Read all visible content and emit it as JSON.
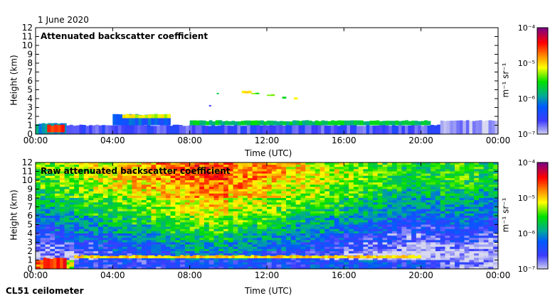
{
  "date": "1 June 2020",
  "instrument": "CL51 ceilometer",
  "colorbar": {
    "unit_label": "m⁻¹ sr⁻¹",
    "ticks": [
      "10⁻⁴",
      "10⁻⁵",
      "10⁻⁶",
      "10⁻⁷"
    ],
    "range_log10": [
      -7,
      -4
    ]
  },
  "chart_data": [
    {
      "type": "heatmap",
      "title": "Attenuated backscatter coefficient",
      "xlabel": "Time (UTC)",
      "ylabel": "Height (km)",
      "xlim": [
        0,
        24
      ],
      "ylim": [
        0,
        12
      ],
      "xticks": [
        "00:00",
        "04:00",
        "08:00",
        "12:00",
        "16:00",
        "20:00",
        "00:00"
      ],
      "yticks": [
        "0",
        "1",
        "2",
        "3",
        "4",
        "5",
        "6",
        "7",
        "8",
        "9",
        "10",
        "11",
        "12"
      ],
      "features": [
        {
          "t": [
            0,
            1.6
          ],
          "h": [
            0,
            1.2
          ],
          "v": -6.0
        },
        {
          "t": [
            0.6,
            1.5
          ],
          "h": [
            0.2,
            1.0
          ],
          "v": -4.6
        },
        {
          "t": [
            1.6,
            21
          ],
          "h": [
            0,
            1.0
          ],
          "v": -6.6
        },
        {
          "t": [
            21,
            24
          ],
          "h": [
            0,
            1.5
          ],
          "v": -6.9
        },
        {
          "t": [
            4,
            7
          ],
          "h": [
            1.0,
            2.2
          ],
          "v": -6.2
        },
        {
          "t": [
            4.5,
            7
          ],
          "h": [
            1.8,
            2.2
          ],
          "v": -5.1
        },
        {
          "t": [
            8,
            20.5
          ],
          "h": [
            1.0,
            1.5
          ],
          "v": -5.7
        },
        {
          "t": [
            9.0,
            9.1
          ],
          "h": [
            3.1,
            3.3
          ],
          "v": -6.5
        },
        {
          "t": [
            9.4,
            9.5
          ],
          "h": [
            4.5,
            4.7
          ],
          "v": -5.5
        },
        {
          "t": [
            10.7,
            11.2
          ],
          "h": [
            4.6,
            4.9
          ],
          "v": -5.0
        },
        {
          "t": [
            11.2,
            11.6
          ],
          "h": [
            4.5,
            4.7
          ],
          "v": -5.4
        },
        {
          "t": [
            12.0,
            12.4
          ],
          "h": [
            4.3,
            4.5
          ],
          "v": -5.2
        },
        {
          "t": [
            12.8,
            13.0
          ],
          "h": [
            4.0,
            4.2
          ],
          "v": -5.6
        },
        {
          "t": [
            13.4,
            13.6
          ],
          "h": [
            3.9,
            4.1
          ],
          "v": -5.2
        }
      ]
    },
    {
      "type": "heatmap",
      "title": "Raw attenuated backscatter coefficient",
      "xlabel": "Time (UTC)",
      "ylabel": "Height (km)",
      "xlim": [
        0,
        24
      ],
      "ylim": [
        0,
        12
      ],
      "xticks": [
        "00:00",
        "04:00",
        "08:00",
        "12:00",
        "16:00",
        "20:00",
        "00:00"
      ],
      "yticks": [
        "0",
        "1",
        "2",
        "3",
        "4",
        "5",
        "6",
        "7",
        "8",
        "9",
        "10",
        "11",
        "12"
      ],
      "hours": [
        0,
        1,
        2,
        3,
        4,
        5,
        6,
        7,
        8,
        9,
        10,
        11,
        12,
        13,
        14,
        15,
        16,
        17,
        18,
        19,
        20,
        21,
        22,
        23
      ],
      "rows_top_to_bottom_log10": [
        [
          -5.4,
          -5.3,
          -5.2,
          -5.1,
          -5.0,
          -4.9,
          -4.8,
          -4.7,
          -4.6,
          -4.6,
          -4.7,
          -4.8,
          -4.9,
          -5.0,
          -5.1,
          -5.2,
          -5.3,
          -5.4,
          -5.5,
          -5.6,
          -5.6,
          -5.5,
          -5.5,
          -5.6
        ],
        [
          -5.4,
          -5.3,
          -5.2,
          -5.1,
          -5.0,
          -4.9,
          -4.8,
          -4.7,
          -4.6,
          -4.6,
          -4.7,
          -4.8,
          -4.9,
          -5.0,
          -5.1,
          -5.2,
          -5.3,
          -5.4,
          -5.5,
          -5.6,
          -5.6,
          -5.5,
          -5.5,
          -5.6
        ],
        [
          -5.5,
          -5.4,
          -5.3,
          -5.2,
          -5.1,
          -5.0,
          -4.9,
          -4.8,
          -4.7,
          -4.7,
          -4.8,
          -4.9,
          -5.0,
          -5.1,
          -5.2,
          -5.3,
          -5.4,
          -5.5,
          -5.6,
          -5.7,
          -5.7,
          -5.6,
          -5.6,
          -5.7
        ],
        [
          -5.6,
          -5.5,
          -5.4,
          -5.3,
          -5.2,
          -5.1,
          -5.0,
          -4.9,
          -4.8,
          -4.8,
          -4.9,
          -5.0,
          -5.1,
          -5.2,
          -5.3,
          -5.4,
          -5.5,
          -5.6,
          -5.7,
          -5.8,
          -5.8,
          -5.7,
          -5.7,
          -5.8
        ],
        [
          -5.8,
          -5.7,
          -5.6,
          -5.5,
          -5.4,
          -5.3,
          -5.2,
          -5.1,
          -5.0,
          -5.0,
          -5.1,
          -5.2,
          -5.3,
          -5.4,
          -5.5,
          -5.6,
          -5.7,
          -5.8,
          -5.9,
          -6.0,
          -6.0,
          -5.9,
          -5.9,
          -6.0
        ],
        [
          -5.9,
          -5.8,
          -5.7,
          -5.6,
          -5.5,
          -5.4,
          -5.3,
          -5.2,
          -5.1,
          -5.1,
          -5.2,
          -5.3,
          -5.4,
          -5.5,
          -5.6,
          -5.7,
          -5.8,
          -5.9,
          -6.0,
          -6.1,
          -6.1,
          -6.0,
          -6.0,
          -6.1
        ],
        [
          -6.1,
          -6.0,
          -5.9,
          -5.8,
          -5.7,
          -5.6,
          -5.5,
          -5.4,
          -5.3,
          -5.3,
          -5.4,
          -5.5,
          -5.6,
          -5.7,
          -5.8,
          -5.9,
          -6.0,
          -6.1,
          -6.2,
          -6.3,
          -6.3,
          -6.2,
          -6.2,
          -6.3
        ],
        [
          -6.3,
          -6.2,
          -6.1,
          -6.0,
          -5.9,
          -5.8,
          -5.7,
          -5.6,
          -5.5,
          -5.5,
          -5.6,
          -5.7,
          -5.8,
          -5.9,
          -6.0,
          -6.1,
          -6.2,
          -6.3,
          -6.4,
          -6.5,
          -6.5,
          -6.4,
          -6.4,
          -6.5
        ],
        [
          -6.5,
          -6.4,
          -6.3,
          -6.2,
          -6.1,
          -6.0,
          -5.9,
          -5.8,
          -5.7,
          -5.7,
          -5.8,
          -5.9,
          -6.0,
          -6.1,
          -6.2,
          -6.3,
          -6.4,
          -6.5,
          -6.6,
          -6.7,
          -6.7,
          -6.6,
          -6.6,
          -6.7
        ],
        [
          -6.7,
          -6.6,
          -6.5,
          -6.4,
          -6.3,
          -6.2,
          -6.1,
          -6.0,
          -5.9,
          -5.9,
          -6.0,
          -6.1,
          -6.2,
          -6.3,
          -6.4,
          -6.5,
          -6.6,
          -6.7,
          -6.8,
          -6.9,
          -6.9,
          -6.8,
          -6.8,
          -6.9
        ],
        [
          -6.9,
          -6.8,
          -6.7,
          -6.6,
          -6.5,
          -6.4,
          -6.3,
          -6.2,
          -6.1,
          -6.1,
          -6.2,
          -6.3,
          -6.4,
          -6.5,
          -6.6,
          -6.7,
          -6.8,
          -6.9,
          -7.0,
          -7.0,
          -7.0,
          -7.0,
          -7.0,
          -7.0
        ],
        [
          -4.6,
          -5.2,
          -6.4,
          -6.5,
          -6.5,
          -6.5,
          -6.5,
          -6.5,
          -6.4,
          -6.4,
          -6.4,
          -6.4,
          -6.4,
          -6.4,
          -6.3,
          -6.3,
          -6.3,
          -6.3,
          -6.4,
          -6.4,
          -6.5,
          -6.7,
          -6.8,
          -6.9
        ]
      ],
      "features": [
        {
          "t": [
            0.4,
            1.6
          ],
          "h": [
            0,
            1.2
          ],
          "v": -4.5
        },
        {
          "t": [
            2,
            20
          ],
          "h": [
            1.2,
            1.5
          ],
          "v": -5.0
        }
      ]
    }
  ]
}
